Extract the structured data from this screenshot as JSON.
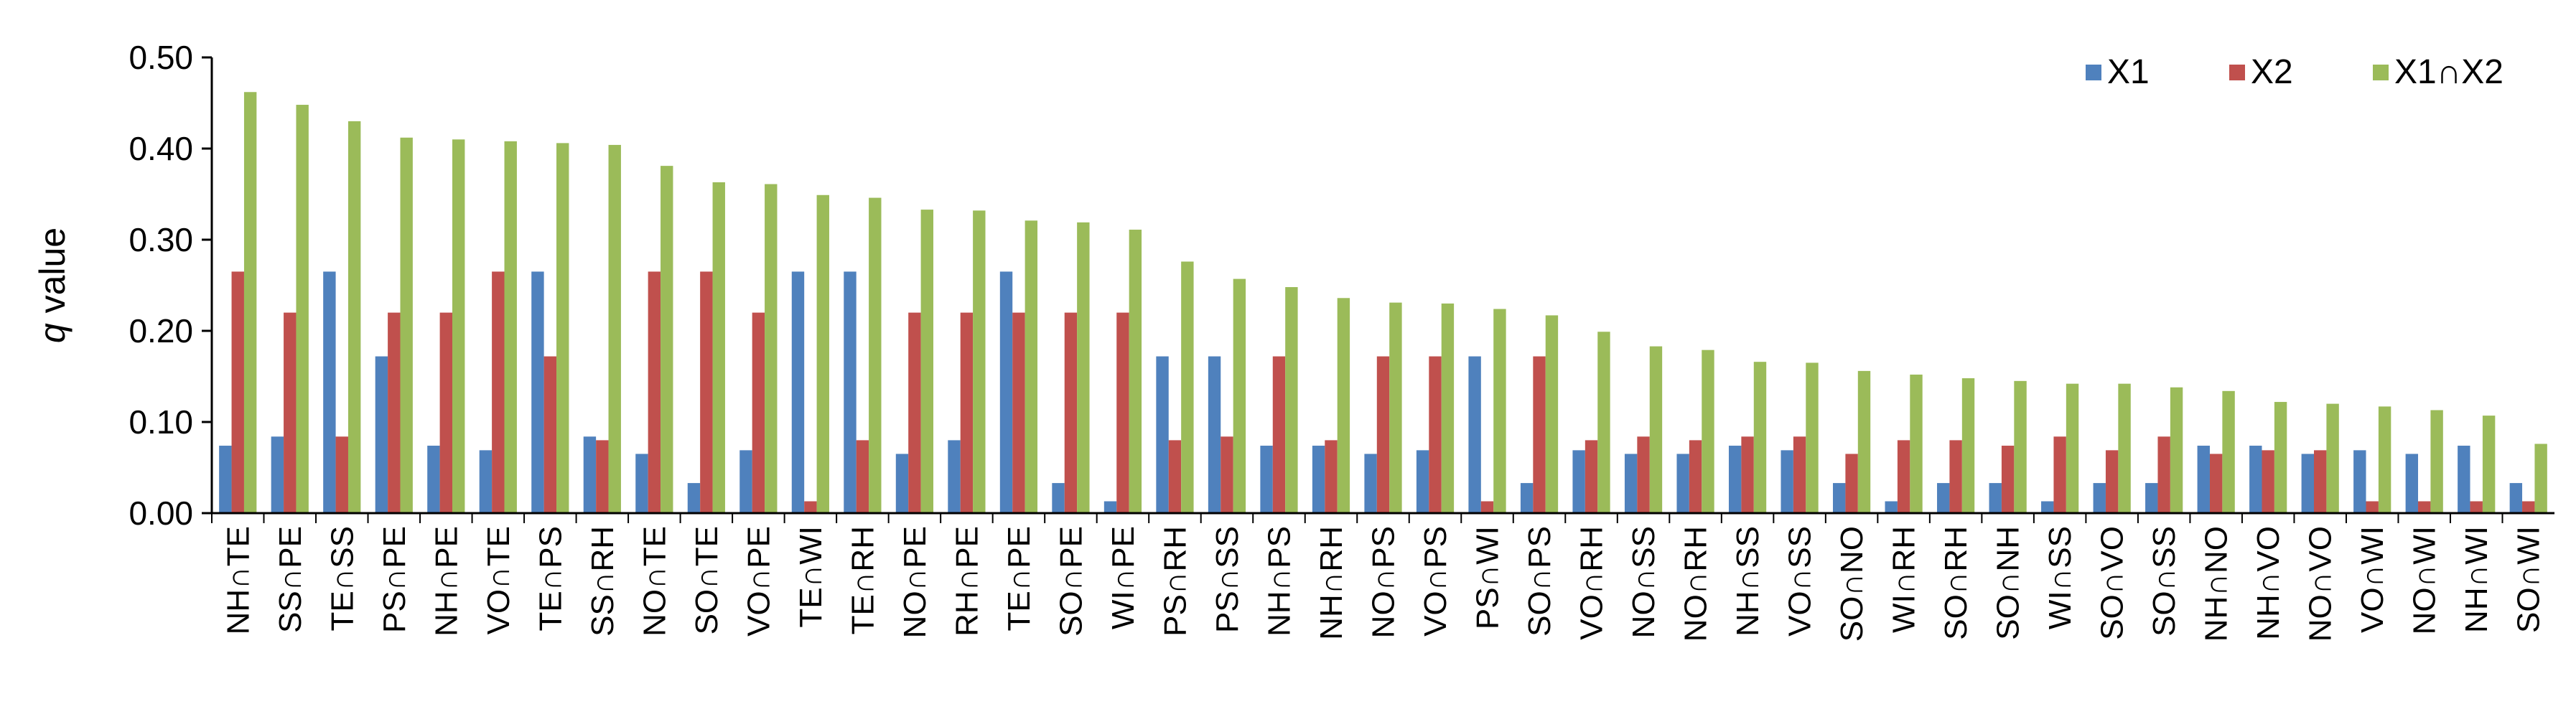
{
  "chart_data": {
    "type": "bar",
    "title": "",
    "xlabel": "",
    "ylabel_italic": "q",
    "ylabel_rest": " value",
    "ylim": [
      0,
      0.5
    ],
    "yticks": [
      "0.00",
      "0.10",
      "0.20",
      "0.30",
      "0.40",
      "0.50"
    ],
    "grid": false,
    "legend_position": "top-right",
    "categories": [
      "NH∩TE",
      "SS∩PE",
      "TE∩SS",
      "PS∩PE",
      "NH∩PE",
      "VO∩TE",
      "TE∩PS",
      "SS∩RH",
      "NO∩TE",
      "SO∩TE",
      "VO∩PE",
      "TE∩WI",
      "TE∩RH",
      "NO∩PE",
      "RH∩PE",
      "TE∩PE",
      "SO∩PE",
      "WI∩PE",
      "PS∩RH",
      "PS∩SS",
      "NH∩PS",
      "NH∩RH",
      "NO∩PS",
      "VO∩PS",
      "PS∩WI",
      "SO∩PS",
      "VO∩RH",
      "NO∩SS",
      "NO∩RH",
      "NH∩SS",
      "VO∩SS",
      "SO∩NO",
      "WI∩RH",
      "SO∩RH",
      "SO∩NH",
      "WI∩SS",
      "SO∩VO",
      "SO∩SS",
      "NH∩NO",
      "NH∩VO",
      "NO∩VO",
      "VO∩WI",
      "NO∩WI",
      "NH∩WI",
      "SO∩WI"
    ],
    "series": [
      {
        "name": "X1",
        "color": "#4F81BD",
        "values": [
          0.074,
          0.084,
          0.265,
          0.172,
          0.074,
          0.069,
          0.265,
          0.084,
          0.065,
          0.033,
          0.069,
          0.265,
          0.265,
          0.065,
          0.08,
          0.265,
          0.033,
          0.013,
          0.172,
          0.172,
          0.074,
          0.074,
          0.065,
          0.069,
          0.172,
          0.033,
          0.069,
          0.065,
          0.065,
          0.074,
          0.069,
          0.033,
          0.013,
          0.033,
          0.033,
          0.013,
          0.033,
          0.033,
          0.074,
          0.074,
          0.065,
          0.069,
          0.065,
          0.074,
          0.033
        ]
      },
      {
        "name": "X2",
        "color": "#C0504D",
        "values": [
          0.265,
          0.22,
          0.084,
          0.22,
          0.22,
          0.265,
          0.172,
          0.08,
          0.265,
          0.265,
          0.22,
          0.013,
          0.08,
          0.22,
          0.22,
          0.22,
          0.22,
          0.22,
          0.08,
          0.084,
          0.172,
          0.08,
          0.172,
          0.172,
          0.013,
          0.172,
          0.08,
          0.084,
          0.08,
          0.084,
          0.084,
          0.065,
          0.08,
          0.08,
          0.074,
          0.084,
          0.069,
          0.084,
          0.065,
          0.069,
          0.069,
          0.013,
          0.013,
          0.013,
          0.013
        ]
      },
      {
        "name": "X1∩X2",
        "color": "#9BBB59",
        "values": [
          0.462,
          0.448,
          0.43,
          0.412,
          0.41,
          0.408,
          0.406,
          0.404,
          0.381,
          0.363,
          0.361,
          0.349,
          0.346,
          0.333,
          0.332,
          0.321,
          0.319,
          0.311,
          0.276,
          0.257,
          0.248,
          0.236,
          0.231,
          0.23,
          0.224,
          0.217,
          0.199,
          0.183,
          0.179,
          0.166,
          0.165,
          0.156,
          0.152,
          0.148,
          0.145,
          0.142,
          0.142,
          0.138,
          0.134,
          0.122,
          0.12,
          0.117,
          0.113,
          0.107,
          0.076
        ]
      }
    ]
  }
}
